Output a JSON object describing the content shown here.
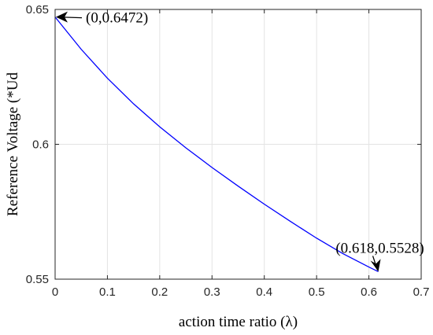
{
  "chart_data": {
    "type": "line",
    "title": "",
    "xlabel": "action time ratio (λ)",
    "ylabel": "Reference Voltage (*Ud",
    "xlim": [
      0,
      0.7
    ],
    "ylim": [
      0.55,
      0.65
    ],
    "grid": true,
    "x_ticks": [
      "0",
      "0.1",
      "0.2",
      "0.3",
      "0.4",
      "0.5",
      "0.6",
      "0.7"
    ],
    "y_ticks": [
      "0.55",
      "0.6",
      "0.65"
    ],
    "series": [
      {
        "color": "#0000ff",
        "x": [
          0,
          0.05,
          0.1,
          0.15,
          0.2,
          0.25,
          0.3,
          0.35,
          0.4,
          0.45,
          0.5,
          0.55,
          0.6,
          0.618
        ],
        "y": [
          0.6472,
          0.6352,
          0.6245,
          0.615,
          0.6065,
          0.5987,
          0.5914,
          0.5845,
          0.5778,
          0.5714,
          0.5652,
          0.5595,
          0.5545,
          0.5528
        ]
      }
    ],
    "annotations": [
      {
        "text": "(0,0.6472)",
        "x": 0,
        "y": 0.6472
      },
      {
        "text": "(0.618,0.5528)",
        "x": 0.618,
        "y": 0.5528
      }
    ]
  }
}
